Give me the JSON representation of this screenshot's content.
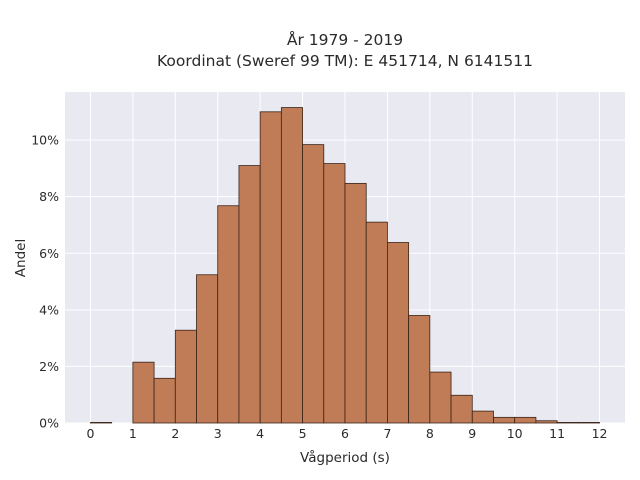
{
  "chart_data": {
    "type": "bar",
    "title": "År 1979 - 2019",
    "subtitle": "Koordinat (Sweref 99 TM): E 451714, N 6141511",
    "xlabel": "Vågperiod (s)",
    "ylabel": "Andel",
    "xlim": [
      -0.6,
      12.6
    ],
    "ylim": [
      0,
      11.7
    ],
    "bin_width": 0.5,
    "x_ticks": [
      0,
      1,
      2,
      3,
      4,
      5,
      6,
      7,
      8,
      9,
      10,
      11,
      12
    ],
    "x_tick_labels": [
      "0",
      "1",
      "2",
      "3",
      "4",
      "5",
      "6",
      "7",
      "8",
      "9",
      "10",
      "11",
      "12"
    ],
    "y_ticks": [
      0,
      2,
      4,
      6,
      8,
      10
    ],
    "y_tick_labels": [
      "0%",
      "2%",
      "4%",
      "6%",
      "8%",
      "10%"
    ],
    "grid": true,
    "bar_color": "#c07b57",
    "edge_color": "#3a2418",
    "background_color": "#e9e9f1",
    "bins": [
      {
        "x0": 0.0,
        "x1": 0.5,
        "value": 0.02
      },
      {
        "x0": 1.0,
        "x1": 1.5,
        "value": 2.15
      },
      {
        "x0": 1.5,
        "x1": 2.0,
        "value": 1.58
      },
      {
        "x0": 2.0,
        "x1": 2.5,
        "value": 3.28
      },
      {
        "x0": 2.5,
        "x1": 3.0,
        "value": 5.24
      },
      {
        "x0": 3.0,
        "x1": 3.5,
        "value": 7.68
      },
      {
        "x0": 3.5,
        "x1": 4.0,
        "value": 9.1
      },
      {
        "x0": 4.0,
        "x1": 4.5,
        "value": 11.0
      },
      {
        "x0": 4.5,
        "x1": 5.0,
        "value": 11.15
      },
      {
        "x0": 5.0,
        "x1": 5.5,
        "value": 9.84
      },
      {
        "x0": 5.5,
        "x1": 6.0,
        "value": 9.17
      },
      {
        "x0": 6.0,
        "x1": 6.5,
        "value": 8.47
      },
      {
        "x0": 6.5,
        "x1": 7.0,
        "value": 7.1
      },
      {
        "x0": 7.0,
        "x1": 7.5,
        "value": 6.38
      },
      {
        "x0": 7.5,
        "x1": 8.0,
        "value": 3.8
      },
      {
        "x0": 8.0,
        "x1": 8.5,
        "value": 1.8
      },
      {
        "x0": 8.5,
        "x1": 9.0,
        "value": 0.98
      },
      {
        "x0": 9.0,
        "x1": 9.5,
        "value": 0.42
      },
      {
        "x0": 9.5,
        "x1": 10.0,
        "value": 0.2
      },
      {
        "x0": 10.0,
        "x1": 10.5,
        "value": 0.2
      },
      {
        "x0": 10.5,
        "x1": 11.0,
        "value": 0.08
      },
      {
        "x0": 11.0,
        "x1": 11.5,
        "value": 0.02
      },
      {
        "x0": 11.5,
        "x1": 12.0,
        "value": 0.02
      }
    ]
  }
}
